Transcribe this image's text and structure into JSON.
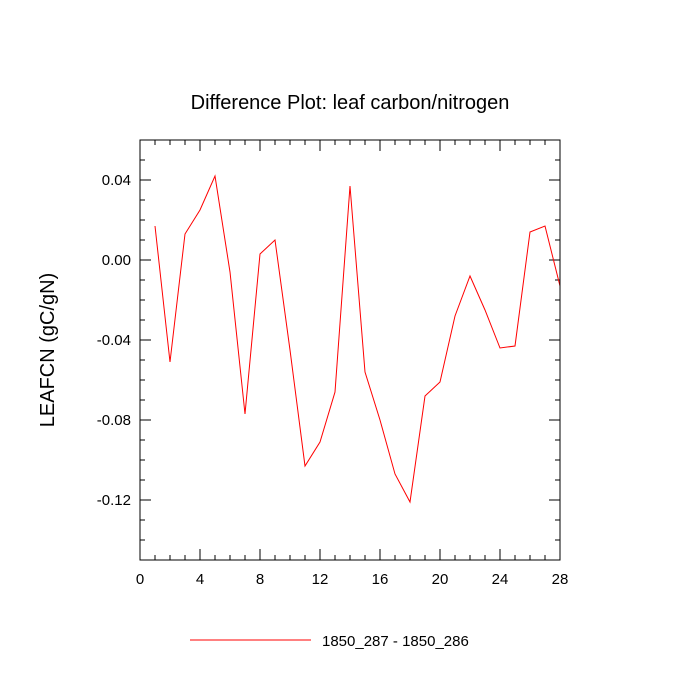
{
  "chart_data": {
    "type": "line",
    "title": "Difference Plot: leaf carbon/nitrogen",
    "xlabel": "",
    "ylabel": "LEAFCN  (gC/gN)",
    "xlim": [
      0,
      28
    ],
    "ylim": [
      -0.15,
      0.06
    ],
    "xticks": [
      0,
      4,
      8,
      12,
      16,
      20,
      24,
      28
    ],
    "xtick_labels": [
      "0",
      "4",
      "8",
      "12",
      "16",
      "20",
      "24",
      "28"
    ],
    "yticks": [
      0.04,
      0.0,
      -0.04,
      -0.08,
      -0.12
    ],
    "ytick_labels": [
      "0.04",
      "0.00",
      "-0.04",
      "-0.08",
      "-0.12"
    ],
    "grid": false,
    "legend_position": "bottom",
    "series": [
      {
        "name": "1850_287 - 1850_286",
        "color": "#ff0000",
        "x": [
          1,
          2,
          3,
          4,
          5,
          6,
          7,
          8,
          9,
          10,
          11,
          12,
          13,
          14,
          15,
          16,
          17,
          18,
          19,
          20,
          21,
          22,
          23,
          24,
          25,
          26,
          27,
          28
        ],
        "values": [
          0.017,
          -0.051,
          0.013,
          0.025,
          0.042,
          -0.006,
          -0.077,
          0.003,
          0.01,
          -0.045,
          -0.103,
          -0.091,
          -0.066,
          0.037,
          -0.056,
          -0.08,
          -0.107,
          -0.121,
          -0.068,
          -0.061,
          -0.028,
          -0.008,
          -0.025,
          -0.044,
          -0.043,
          0.014,
          0.017,
          -0.013
        ]
      }
    ]
  }
}
